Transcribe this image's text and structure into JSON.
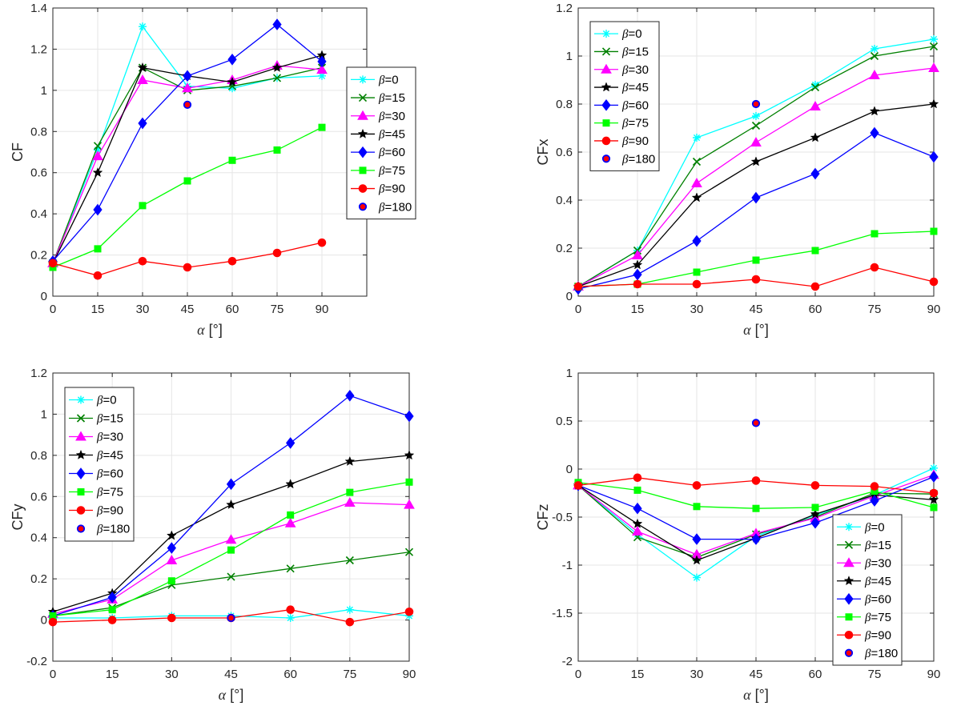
{
  "chart_data": [
    {
      "type": "line",
      "ylabel": "CF",
      "xlabel_symbol": "α",
      "xlabel_unit": " [°]",
      "x": [
        0,
        15,
        30,
        45,
        60,
        75,
        90
      ],
      "xlim": [
        0,
        105
      ],
      "ylim": [
        0,
        1.4
      ],
      "yticks": [
        0,
        0.2,
        0.4,
        0.6,
        0.8,
        1,
        1.2,
        1.4
      ],
      "ytick_labels": [
        "0",
        "0.2",
        "0.4",
        "0.6",
        "0.8",
        "1",
        "1.2",
        "1.4"
      ],
      "legend_position": "east",
      "grid": true,
      "series": [
        {
          "name": "β=0",
          "sym": "β",
          "label": "=0",
          "color": "#00ffff",
          "marker": "asterisk",
          "values": [
            0.16,
            0.71,
            1.31,
            1.02,
            1.01,
            1.06,
            1.07
          ]
        },
        {
          "name": "β=15",
          "sym": "β",
          "label": "=15",
          "color": "#008000",
          "marker": "x",
          "values": [
            0.16,
            0.73,
            1.11,
            1.0,
            1.02,
            1.06,
            1.11
          ]
        },
        {
          "name": "β=30",
          "sym": "β",
          "label": "=30",
          "color": "#ff00ff",
          "marker": "triangle",
          "values": [
            0.16,
            0.68,
            1.05,
            1.01,
            1.05,
            1.12,
            1.1
          ]
        },
        {
          "name": "β=45",
          "sym": "β",
          "label": "=45",
          "color": "#000000",
          "marker": "star",
          "values": [
            0.16,
            0.6,
            1.11,
            1.07,
            1.04,
            1.11,
            1.17
          ]
        },
        {
          "name": "β=60",
          "sym": "β",
          "label": "=60",
          "color": "#0000ff",
          "marker": "diamond",
          "values": [
            0.17,
            0.42,
            0.84,
            1.07,
            1.15,
            1.32,
            1.14
          ]
        },
        {
          "name": "β=75",
          "sym": "β",
          "label": "=75",
          "color": "#00ff00",
          "marker": "square",
          "values": [
            0.14,
            0.23,
            0.44,
            0.56,
            0.66,
            0.71,
            0.82
          ]
        },
        {
          "name": "β=90",
          "sym": "β",
          "label": "=90",
          "color": "#ff0000",
          "marker": "circle",
          "values": [
            0.16,
            0.1,
            0.17,
            0.14,
            0.17,
            0.21,
            0.26
          ]
        },
        {
          "name": "β=180",
          "sym": "β",
          "label": "=180",
          "color": "#ff0000",
          "edge": "#0000ff",
          "marker": "dot",
          "values": [
            null,
            null,
            null,
            0.93,
            null,
            null,
            null
          ]
        }
      ]
    },
    {
      "type": "line",
      "ylabel": "CFx",
      "xlabel_symbol": "α",
      "xlabel_unit": " [°]",
      "x": [
        0,
        15,
        30,
        45,
        60,
        75,
        90
      ],
      "xlim": [
        0,
        90
      ],
      "ylim": [
        0,
        1.2
      ],
      "yticks": [
        0,
        0.2,
        0.4,
        0.6,
        0.8,
        1,
        1.2
      ],
      "ytick_labels": [
        "0",
        "0.2",
        "0.4",
        "0.6",
        "0.8",
        "1",
        "1.2"
      ],
      "legend_position": "top-left",
      "grid": true,
      "series": [
        {
          "name": "β=0",
          "sym": "β",
          "label": "=0",
          "color": "#00ffff",
          "marker": "asterisk",
          "values": [
            0.04,
            0.19,
            0.66,
            0.75,
            0.88,
            1.03,
            1.07
          ]
        },
        {
          "name": "β=15",
          "sym": "β",
          "label": "=15",
          "color": "#008000",
          "marker": "x",
          "values": [
            0.04,
            0.19,
            0.56,
            0.71,
            0.87,
            1.0,
            1.04
          ]
        },
        {
          "name": "β=30",
          "sym": "β",
          "label": "=30",
          "color": "#ff00ff",
          "marker": "triangle",
          "values": [
            0.04,
            0.17,
            0.47,
            0.64,
            0.79,
            0.92,
            0.95
          ]
        },
        {
          "name": "β=45",
          "sym": "β",
          "label": "=45",
          "color": "#000000",
          "marker": "star",
          "values": [
            0.04,
            0.13,
            0.41,
            0.56,
            0.66,
            0.77,
            0.8
          ]
        },
        {
          "name": "β=60",
          "sym": "β",
          "label": "=60",
          "color": "#0000ff",
          "marker": "diamond",
          "values": [
            0.03,
            0.09,
            0.23,
            0.41,
            0.51,
            0.68,
            0.58
          ]
        },
        {
          "name": "β=75",
          "sym": "β",
          "label": "=75",
          "color": "#00ff00",
          "marker": "square",
          "values": [
            0.04,
            0.05,
            0.1,
            0.15,
            0.19,
            0.26,
            0.27
          ]
        },
        {
          "name": "β=90",
          "sym": "β",
          "label": "=90",
          "color": "#ff0000",
          "marker": "circle",
          "values": [
            0.04,
            0.05,
            0.05,
            0.07,
            0.04,
            0.12,
            0.06
          ]
        },
        {
          "name": "β=180",
          "sym": "β",
          "label": "=180",
          "color": "#ff0000",
          "edge": "#0000ff",
          "marker": "dot",
          "values": [
            null,
            null,
            null,
            0.8,
            null,
            null,
            null
          ]
        }
      ]
    },
    {
      "type": "line",
      "ylabel": "CFy",
      "xlabel_symbol": "α",
      "xlabel_unit": " [°]",
      "x": [
        0,
        15,
        30,
        45,
        60,
        75,
        90
      ],
      "xlim": [
        0,
        90
      ],
      "ylim": [
        -0.2,
        1.2
      ],
      "yticks": [
        -0.2,
        0,
        0.2,
        0.4,
        0.6,
        0.8,
        1,
        1.2
      ],
      "ytick_labels": [
        "-0.2",
        "0",
        "0.2",
        "0.4",
        "0.6",
        "0.8",
        "1",
        "1.2"
      ],
      "legend_position": "top-left",
      "grid": true,
      "series": [
        {
          "name": "β=0",
          "sym": "β",
          "label": "=0",
          "color": "#00ffff",
          "marker": "asterisk",
          "values": [
            0.01,
            0.01,
            0.02,
            0.02,
            0.01,
            0.05,
            0.02
          ]
        },
        {
          "name": "β=15",
          "sym": "β",
          "label": "=15",
          "color": "#008000",
          "marker": "x",
          "values": [
            0.02,
            0.06,
            0.17,
            0.21,
            0.25,
            0.29,
            0.33
          ]
        },
        {
          "name": "β=30",
          "sym": "β",
          "label": "=30",
          "color": "#ff00ff",
          "marker": "triangle",
          "values": [
            0.03,
            0.1,
            0.29,
            0.39,
            0.47,
            0.57,
            0.56
          ]
        },
        {
          "name": "β=45",
          "sym": "β",
          "label": "=45",
          "color": "#000000",
          "marker": "star",
          "values": [
            0.04,
            0.13,
            0.41,
            0.56,
            0.66,
            0.77,
            0.8
          ]
        },
        {
          "name": "β=60",
          "sym": "β",
          "label": "=60",
          "color": "#0000ff",
          "marker": "diamond",
          "values": [
            0.02,
            0.11,
            0.35,
            0.66,
            0.86,
            1.09,
            0.99
          ]
        },
        {
          "name": "β=75",
          "sym": "β",
          "label": "=75",
          "color": "#00ff00",
          "marker": "square",
          "values": [
            0.02,
            0.05,
            0.19,
            0.34,
            0.51,
            0.62,
            0.67
          ]
        },
        {
          "name": "β=90",
          "sym": "β",
          "label": "=90",
          "color": "#ff0000",
          "marker": "circle",
          "values": [
            -0.01,
            0.0,
            0.01,
            0.01,
            0.05,
            -0.01,
            0.04
          ]
        },
        {
          "name": "β=180",
          "sym": "β",
          "label": "=180",
          "color": "#ff0000",
          "edge": "#0000ff",
          "marker": "dot",
          "values": [
            null,
            null,
            null,
            0.01,
            null,
            null,
            null
          ]
        }
      ]
    },
    {
      "type": "line",
      "ylabel": "CFz",
      "xlabel_symbol": "α",
      "xlabel_unit": " [°]",
      "x": [
        0,
        15,
        30,
        45,
        60,
        75,
        90
      ],
      "xlim": [
        0,
        90
      ],
      "ylim": [
        -2,
        1
      ],
      "yticks": [
        -2,
        -1.5,
        -1,
        -0.5,
        0,
        0.5,
        1
      ],
      "ytick_labels": [
        "-2",
        "-1.5",
        "-1",
        "-0.5",
        "0",
        "0.5",
        "1"
      ],
      "legend_position": "bottom-right",
      "grid": true,
      "series": [
        {
          "name": "β=0",
          "sym": "β",
          "label": "=0",
          "color": "#00ffff",
          "marker": "asterisk",
          "values": [
            -0.17,
            -0.68,
            -1.13,
            -0.7,
            -0.48,
            -0.27,
            0.01
          ]
        },
        {
          "name": "β=15",
          "sym": "β",
          "label": "=15",
          "color": "#008000",
          "marker": "x",
          "values": [
            -0.17,
            -0.71,
            -0.92,
            -0.68,
            -0.5,
            -0.25,
            -0.26
          ]
        },
        {
          "name": "β=30",
          "sym": "β",
          "label": "=30",
          "color": "#ff00ff",
          "marker": "triangle",
          "values": [
            -0.17,
            -0.65,
            -0.89,
            -0.67,
            -0.51,
            -0.28,
            -0.06
          ]
        },
        {
          "name": "β=45",
          "sym": "β",
          "label": "=45",
          "color": "#000000",
          "marker": "star",
          "values": [
            -0.17,
            -0.57,
            -0.95,
            -0.72,
            -0.47,
            -0.27,
            -0.32
          ]
        },
        {
          "name": "β=60",
          "sym": "β",
          "label": "=60",
          "color": "#0000ff",
          "marker": "diamond",
          "values": [
            -0.17,
            -0.41,
            -0.73,
            -0.73,
            -0.56,
            -0.33,
            -0.08
          ]
        },
        {
          "name": "β=75",
          "sym": "β",
          "label": "=75",
          "color": "#00ff00",
          "marker": "square",
          "values": [
            -0.14,
            -0.22,
            -0.39,
            -0.41,
            -0.4,
            -0.23,
            -0.4
          ]
        },
        {
          "name": "β=90",
          "sym": "β",
          "label": "=90",
          "color": "#ff0000",
          "marker": "circle",
          "values": [
            -0.17,
            -0.09,
            -0.17,
            -0.12,
            -0.17,
            -0.18,
            -0.25
          ]
        },
        {
          "name": "β=180",
          "sym": "β",
          "label": "=180",
          "color": "#ff0000",
          "edge": "#0000ff",
          "marker": "dot",
          "values": [
            null,
            null,
            null,
            0.48,
            null,
            null,
            null
          ]
        }
      ]
    }
  ]
}
